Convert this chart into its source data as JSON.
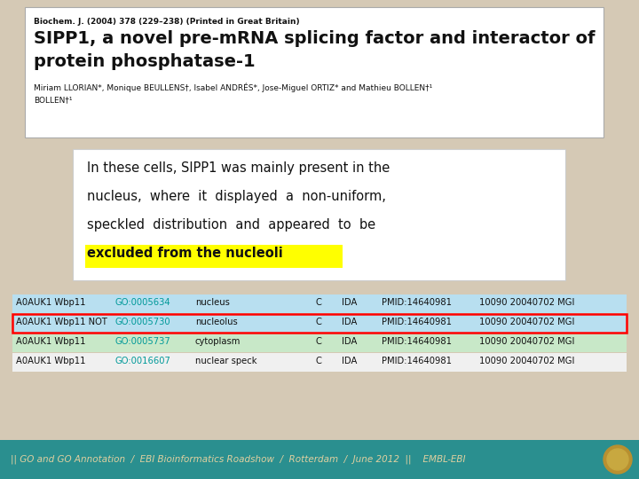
{
  "bg_color": "#d5c9b5",
  "fig_width": 7.2,
  "fig_height": 5.4,
  "paper_bg": "#ffffff",
  "journal_line": "Biochem. J. (2004) 378 (229–238) (Printed in Great Britain)",
  "paper_title_line1": "SIPP1, a novel pre-mRNA splicing factor and interactor of",
  "paper_title_line2": "protein phosphatase-1",
  "paper_authors": "Miriam LLORIAN*, Monique BEULLENS†, Isabel ANDRÉS*, Jose-Miguel ORTIZ* and Mathieu BOLLEN†¹",
  "text_bg": "#ffffff",
  "text_line1": "In these cells, SIPP1 was mainly present in the",
  "text_line2": "nucleus,  where  it  displayed  a  non-uniform,",
  "text_line3": "speckled  distribution  and  appeared  to  be",
  "text_highlight": "excluded from the nucleoli",
  "highlight_color": "#ffff00",
  "table_rows": [
    {
      "gene": "A0AUK1 Wbp11",
      "go_id": "GO:0005634",
      "go_term": "nucleus",
      "C": "C",
      "evidence": "IDA",
      "pmid": "PMID:14640981",
      "extra": "10090 20040702 MGI",
      "highlighted": false
    },
    {
      "gene": "A0AUK1 Wbp11 NOT",
      "go_id": "GO:0005730",
      "go_term": "nucleolus",
      "C": "C",
      "evidence": "IDA",
      "pmid": "PMID:14640981",
      "extra": "10090 20040702 MGI",
      "highlighted": true
    },
    {
      "gene": "A0AUK1 Wbp11",
      "go_id": "GO:0005737",
      "go_term": "cytoplasm",
      "C": "C",
      "evidence": "IDA",
      "pmid": "PMID:14640981",
      "extra": "10090 20040702 MGI",
      "highlighted": false
    },
    {
      "gene": "A0AUK1 Wbp11",
      "go_id": "GO:0016607",
      "go_term": "nuclear speck",
      "C": "C",
      "evidence": "IDA",
      "pmid": "PMID:14640981",
      "extra": "10090 20040702 MGI",
      "highlighted": false
    }
  ],
  "row_colors": [
    "#b8dff0",
    "#b8dff0",
    "#c8e8c8",
    "#f0f0f0"
  ],
  "footer_bg": "#2a8f8f",
  "footer_text": "|| GO and GO Annotation  /  EBI Bioinformatics Roadshow  /  Rotterdam  /  June 2012  ||    EMBL-EBI",
  "footer_text_color": "#e0d0a0"
}
